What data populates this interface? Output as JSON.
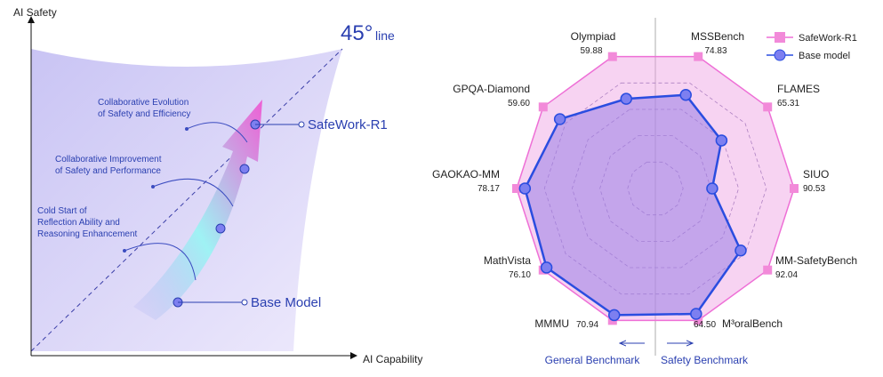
{
  "diagram": {
    "y_axis": "AI Safety",
    "x_axis": "AI Capability",
    "line_label": [
      "45°",
      "line"
    ],
    "stages": [
      [
        "Collaborative Evolution",
        "of Safety and Efficiency"
      ],
      [
        "Collaborative Improvement",
        "of Safety and Performance"
      ],
      [
        "Cold Start of",
        "Reflection Ability and",
        "Reasoning Enhancement"
      ]
    ],
    "top_model": "SafeWork-R1",
    "bottom_model": "Base Model"
  },
  "chart_data": {
    "type": "radar",
    "categories": [
      "Olympiad",
      "MSSBench",
      "FLAMES",
      "SIUO",
      "MM-SafetyBench",
      "M³oralBench",
      "MMMU",
      "MathVista",
      "GAOKAO-MM",
      "GPQA-Diamond"
    ],
    "series": [
      {
        "name": "SafeWork-R1",
        "color": "#ee6fd6",
        "values": [
          59.88,
          74.83,
          65.31,
          90.53,
          92.04,
          64.5,
          70.94,
          76.1,
          78.17,
          59.6
        ],
        "value_labels": [
          "59.88",
          "74.83",
          "65.31",
          "90.53",
          "92.04",
          "64.50",
          "70.94",
          "76.10",
          "78.17",
          "59.60"
        ]
      },
      {
        "name": "Base model",
        "color": "#2a4de0",
        "values": [
          40.7,
          53.1,
          38.5,
          37.1,
          70.0,
          61.3,
          68.1,
          73.8,
          73.5,
          50.7
        ]
      }
    ],
    "group_labels": [
      "General Benchmark",
      "Safety Benchmark"
    ],
    "legend": "upper right"
  }
}
